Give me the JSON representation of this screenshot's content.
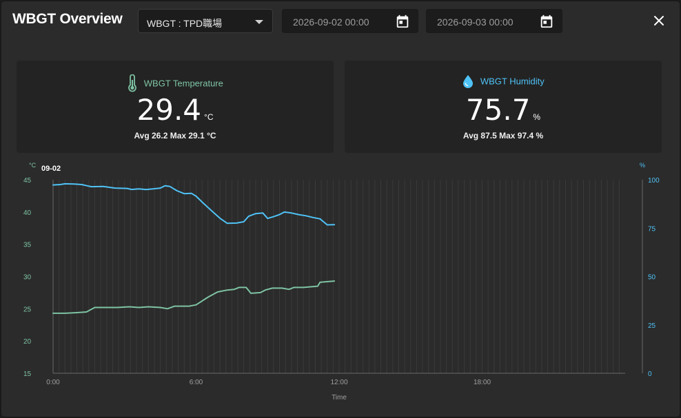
{
  "header": {
    "title": "WBGT Overview",
    "sensor_select": "WBGT : TPD職場",
    "start_date": "2026-09-02 00:00",
    "end_date": "2026-09-03 00:00"
  },
  "temperature_card": {
    "label": "WBGT Temperature",
    "value": "29.4",
    "unit": "°C",
    "stats": "Avg 26.2 Max 29.1 °C",
    "icon": "thermometer-icon",
    "color": "#7ec4a4"
  },
  "humidity_card": {
    "label": "WBGT Humidity",
    "value": "75.7",
    "unit": "%",
    "stats": "Avg 87.5 Max 97.4 %",
    "icon": "water-drop-icon",
    "color": "#4fc3f7"
  },
  "chart_data": {
    "type": "line",
    "date_label": "09-02",
    "xlabel": "Time",
    "left_axis": {
      "unit": "°C",
      "ticks": [
        15,
        20,
        25,
        30,
        35,
        40,
        45
      ],
      "range": [
        15,
        45
      ],
      "color": "#7ec4a4"
    },
    "right_axis": {
      "unit": "%",
      "ticks": [
        0,
        25,
        50,
        75,
        100
      ],
      "range": [
        0,
        100
      ],
      "color": "#4fc3f7"
    },
    "x_ticks": [
      "0:00",
      "6:00",
      "12:00",
      "18:00"
    ],
    "x_range_hours": [
      0,
      24
    ],
    "grid": "vertical",
    "series": [
      {
        "axis": "left",
        "color": "#7ec4a4",
        "points": [
          [
            0,
            24.3
          ],
          [
            0.5,
            24.3
          ],
          [
            1.0,
            24.4
          ],
          [
            1.4,
            24.5
          ],
          [
            1.75,
            25.2
          ],
          [
            2.2,
            25.2
          ],
          [
            2.7,
            25.2
          ],
          [
            3.2,
            25.3
          ],
          [
            3.6,
            25.2
          ],
          [
            4.0,
            25.3
          ],
          [
            4.5,
            25.2
          ],
          [
            4.8,
            25.0
          ],
          [
            5.1,
            25.4
          ],
          [
            5.7,
            25.4
          ],
          [
            6.0,
            25.6
          ],
          [
            6.5,
            26.8
          ],
          [
            6.9,
            27.6
          ],
          [
            7.3,
            27.9
          ],
          [
            7.6,
            28.0
          ],
          [
            7.8,
            28.3
          ],
          [
            8.1,
            28.3
          ],
          [
            8.3,
            27.4
          ],
          [
            8.7,
            27.5
          ],
          [
            8.9,
            27.9
          ],
          [
            9.2,
            28.2
          ],
          [
            9.6,
            28.2
          ],
          [
            9.9,
            28.0
          ],
          [
            10.1,
            28.3
          ],
          [
            10.5,
            28.3
          ],
          [
            10.8,
            28.4
          ],
          [
            11.1,
            28.5
          ],
          [
            11.2,
            29.1
          ],
          [
            11.5,
            29.2
          ],
          [
            11.8,
            29.3
          ]
        ]
      },
      {
        "axis": "right",
        "color": "#4fc3f7",
        "points": [
          [
            0,
            97.3
          ],
          [
            0.3,
            97.5
          ],
          [
            0.5,
            97.9
          ],
          [
            0.9,
            97.8
          ],
          [
            1.2,
            97.5
          ],
          [
            1.6,
            96.4
          ],
          [
            2.1,
            96.5
          ],
          [
            2.6,
            95.7
          ],
          [
            3.1,
            95.5
          ],
          [
            3.3,
            95.0
          ],
          [
            3.6,
            95.3
          ],
          [
            3.9,
            94.9
          ],
          [
            4.2,
            95.3
          ],
          [
            4.5,
            95.7
          ],
          [
            4.7,
            96.9
          ],
          [
            4.9,
            96.5
          ],
          [
            5.2,
            94.3
          ],
          [
            5.5,
            92.8
          ],
          [
            5.8,
            93.0
          ],
          [
            6.0,
            91.5
          ],
          [
            6.3,
            87.9
          ],
          [
            6.7,
            83.4
          ],
          [
            7.0,
            80.1
          ],
          [
            7.3,
            77.5
          ],
          [
            7.7,
            77.6
          ],
          [
            8.0,
            78.3
          ],
          [
            8.2,
            81.1
          ],
          [
            8.5,
            82.5
          ],
          [
            8.8,
            82.8
          ],
          [
            9.0,
            80.0
          ],
          [
            9.3,
            81.1
          ],
          [
            9.5,
            82.0
          ],
          [
            9.7,
            83.3
          ],
          [
            10.0,
            82.8
          ],
          [
            10.3,
            82.0
          ],
          [
            10.6,
            81.4
          ],
          [
            10.9,
            80.5
          ],
          [
            11.2,
            79.8
          ],
          [
            11.5,
            76.7
          ],
          [
            11.8,
            76.8
          ]
        ]
      }
    ]
  }
}
